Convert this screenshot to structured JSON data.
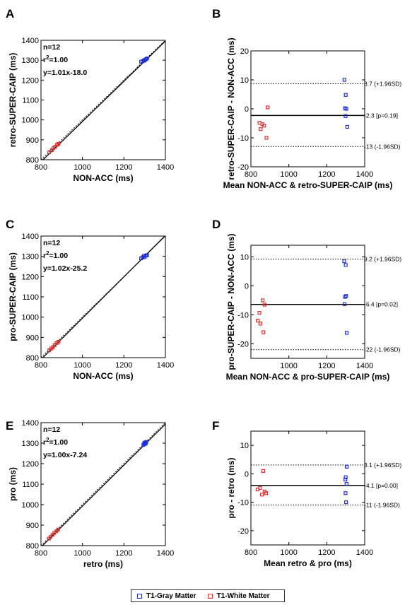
{
  "legend": [
    {
      "name": "T1-Gray Matter",
      "color": "#1f2fd6"
    },
    {
      "name": "T1-White Matter",
      "color": "#e03030"
    }
  ],
  "chart_data": [
    {
      "panel": "A",
      "type": "scatter",
      "xlabel": "NON-ACC (ms)",
      "ylabel": "retro-SUPER-CAIP (ms)",
      "xlim": [
        800,
        1400
      ],
      "ylim": [
        800,
        1400
      ],
      "xticks": [
        800,
        1000,
        1200,
        1400
      ],
      "yticks": [
        800,
        900,
        1000,
        1100,
        1200,
        1300,
        1400
      ],
      "stats": {
        "n": "n=12",
        "r2_base": "r",
        "r2_exp": "2",
        "r2_val": "=1.00",
        "fit": "y=1.01x-18.0"
      },
      "fit_line": {
        "slope": 1.01,
        "intercept": -18.0
      },
      "series": [
        {
          "name": "T1-Gray Matter",
          "points": [
            [
              1283,
              1292
            ],
            [
              1290,
              1295
            ],
            [
              1297,
              1300
            ],
            [
              1300,
              1298
            ],
            [
              1306,
              1305
            ],
            [
              1312,
              1309
            ]
          ]
        },
        {
          "name": "T1-White Matter",
          "points": [
            [
              840,
              838
            ],
            [
              852,
              848
            ],
            [
              860,
              858
            ],
            [
              868,
              865
            ],
            [
              877,
              875
            ],
            [
              884,
              880
            ]
          ]
        }
      ]
    },
    {
      "panel": "B",
      "type": "scatter",
      "xlabel": "Mean NON-ACC & retro-SUPER-CAIP (ms)",
      "ylabel": "retro-SUPER-CAIP - NON-ACC (ms)",
      "xlim": [
        800,
        1400
      ],
      "ylim": [
        -20,
        20
      ],
      "xticks": [
        800,
        1000,
        1200,
        1400
      ],
      "yticks": [
        -20,
        -10,
        0,
        10,
        20
      ],
      "ref_lines": [
        {
          "value": 8.7,
          "label": "8.7 (+1.96SD)",
          "style": "dotted"
        },
        {
          "value": -2.3,
          "label": "-2.3 [p=0.19]",
          "style": "solid"
        },
        {
          "value": -13,
          "label": "-13 (-1.96SD)",
          "style": "dotted"
        }
      ],
      "series": [
        {
          "name": "T1-Gray Matter",
          "points": [
            [
              1293,
              10
            ],
            [
              1300,
              4.8
            ],
            [
              1296,
              0.2
            ],
            [
              1303,
              0
            ],
            [
              1299,
              -2.5
            ],
            [
              1308,
              -6.2
            ]
          ]
        },
        {
          "name": "T1-White Matter",
          "points": [
            [
              888,
              0.5
            ],
            [
              845,
              -4.8
            ],
            [
              860,
              -5.3
            ],
            [
              870,
              -5.8
            ],
            [
              852,
              -7
            ],
            [
              882,
              -10
            ]
          ]
        }
      ]
    },
    {
      "panel": "C",
      "type": "scatter",
      "xlabel": "NON-ACC (ms)",
      "ylabel": "pro-SUPER-CAIP (ms)",
      "xlim": [
        800,
        1400
      ],
      "ylim": [
        800,
        1400
      ],
      "xticks": [
        800,
        1000,
        1200,
        1400
      ],
      "yticks": [
        800,
        900,
        1000,
        1100,
        1200,
        1300,
        1400
      ],
      "stats": {
        "n": "n=12",
        "r2_base": "r",
        "r2_exp": "2",
        "r2_val": "=1.00",
        "fit": "y=1.02x-25.2"
      },
      "fit_line": {
        "slope": 1.02,
        "intercept": -25.2
      },
      "series": [
        {
          "name": "T1-Gray Matter",
          "points": [
            [
              1283,
              1290
            ],
            [
              1290,
              1295
            ],
            [
              1296,
              1302
            ],
            [
              1300,
              1296
            ],
            [
              1306,
              1304
            ],
            [
              1312,
              1306
            ]
          ]
        },
        {
          "name": "T1-White Matter",
          "points": [
            [
              840,
              836
            ],
            [
              850,
              845
            ],
            [
              858,
              852
            ],
            [
              866,
              862
            ],
            [
              875,
              872
            ],
            [
              884,
              878
            ]
          ]
        }
      ]
    },
    {
      "panel": "D",
      "type": "scatter",
      "xlabel": "Mean NON-ACC & pro-SUPER-CAIP (ms)",
      "ylabel": "pro-SUPER-CAIP - NON-ACC (ms)",
      "xlim": [
        800,
        1400
      ],
      "ylim": [
        -25,
        14
      ],
      "xticks": [
        1000,
        1200,
        1400
      ],
      "yticks": [
        -20,
        -10,
        0,
        10
      ],
      "ref_lines": [
        {
          "value": 9.2,
          "label": "9.2 (+1.96SD)",
          "style": "dotted"
        },
        {
          "value": -6.4,
          "label": "-6.4 [p=0.02]",
          "style": "solid"
        },
        {
          "value": -22,
          "label": "-22 (-1.96SD)",
          "style": "dotted"
        }
      ],
      "series": [
        {
          "name": "T1-Gray Matter",
          "points": [
            [
              1292,
              8.5
            ],
            [
              1300,
              7.2
            ],
            [
              1296,
              -3.8
            ],
            [
              1302,
              -3.5
            ],
            [
              1294,
              -6.3
            ],
            [
              1305,
              -16.2
            ]
          ]
        },
        {
          "name": "T1-White Matter",
          "points": [
            [
              862,
              -5
            ],
            [
              872,
              -6.5
            ],
            [
              845,
              -9.3
            ],
            [
              836,
              -12
            ],
            [
              850,
              -13
            ],
            [
              866,
              -16
            ]
          ]
        }
      ]
    },
    {
      "panel": "E",
      "type": "scatter",
      "xlabel": "retro (ms)",
      "ylabel": "pro (ms)",
      "xlim": [
        800,
        1400
      ],
      "ylim": [
        800,
        1400
      ],
      "xticks": [
        800,
        1000,
        1200,
        1400
      ],
      "yticks": [
        800,
        900,
        1000,
        1100,
        1200,
        1300,
        1400
      ],
      "stats": {
        "n": "n=12",
        "r2_base": "r",
        "r2_exp": "2",
        "r2_val": "=1.00",
        "fit": "y=1.00x-7.24"
      },
      "fit_line": {
        "slope": 1.0,
        "intercept": -7.24
      },
      "series": [
        {
          "name": "T1-Gray Matter",
          "points": [
            [
              1294,
              1292
            ],
            [
              1298,
              1300
            ],
            [
              1302,
              1303
            ],
            [
              1305,
              1298
            ],
            [
              1308,
              1306
            ],
            [
              1300,
              1296
            ]
          ]
        },
        {
          "name": "T1-White Matter",
          "points": [
            [
              838,
              834
            ],
            [
              846,
              842
            ],
            [
              855,
              852
            ],
            [
              864,
              862
            ],
            [
              874,
              870
            ],
            [
              882,
              878
            ]
          ]
        }
      ]
    },
    {
      "panel": "F",
      "type": "scatter",
      "xlabel": "Mean retro & pro (ms)",
      "ylabel": "pro - retro (ms)",
      "xlim": [
        800,
        1400
      ],
      "ylim": [
        -25,
        15
      ],
      "xticks": [
        800,
        1000,
        1200,
        1400
      ],
      "yticks": [
        -20,
        -10,
        0,
        10
      ],
      "ref_lines": [
        {
          "value": 3.1,
          "label": "3.1 (+1.96SD)",
          "style": "dotted"
        },
        {
          "value": -4.1,
          "label": "-4.1 [p=0.00]",
          "style": "solid"
        },
        {
          "value": -11,
          "label": "-11 (-1.96SD)",
          "style": "dotted"
        }
      ],
      "series": [
        {
          "name": "T1-Gray Matter",
          "points": [
            [
              1305,
              2.5
            ],
            [
              1300,
              -1.2
            ],
            [
              1298,
              -2
            ],
            [
              1304,
              -3.5
            ],
            [
              1299,
              -6.8
            ],
            [
              1302,
              -10
            ]
          ]
        },
        {
          "name": "T1-White Matter",
          "points": [
            [
              865,
              1
            ],
            [
              835,
              -5.5
            ],
            [
              848,
              -5
            ],
            [
              872,
              -6.2
            ],
            [
              880,
              -6.8
            ],
            [
              858,
              -7.3
            ]
          ]
        }
      ]
    }
  ]
}
